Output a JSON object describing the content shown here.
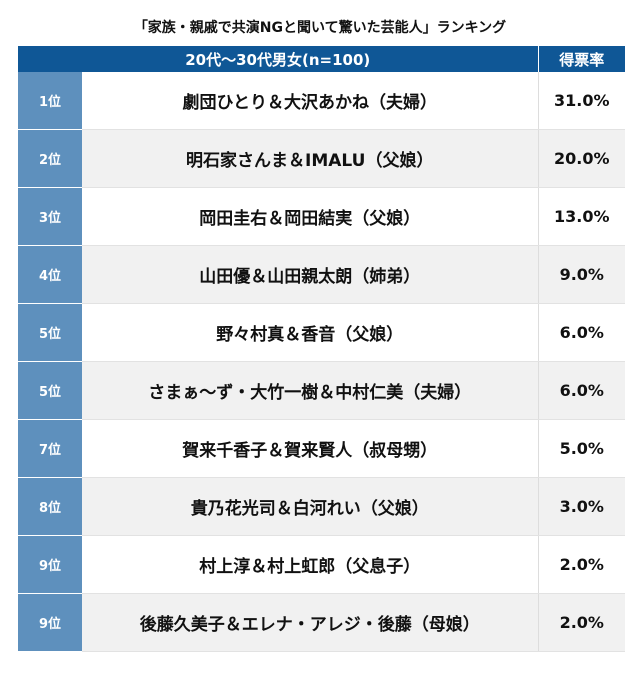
{
  "title": "「家族・親戚で共演NGと聞いて驚いた芸能人」ランキング",
  "header": {
    "group": "20代〜30代男女(n=100)",
    "rate": "得票率"
  },
  "colors": {
    "header": "#0f5796",
    "rank_column": "#5e90bd"
  },
  "rows": [
    {
      "rank": "1位",
      "name": "劇団ひとり＆大沢あかね（夫婦）",
      "rate": "31.0%"
    },
    {
      "rank": "2位",
      "name": "明石家さんま＆IMALU（父娘）",
      "rate": "20.0%"
    },
    {
      "rank": "3位",
      "name": "岡田圭右＆岡田結実（父娘）",
      "rate": "13.0%"
    },
    {
      "rank": "4位",
      "name": "山田優＆山田親太朗（姉弟）",
      "rate": "9.0%"
    },
    {
      "rank": "5位",
      "name": "野々村真＆香音（父娘）",
      "rate": "6.0%"
    },
    {
      "rank": "5位",
      "name": "さまぁ〜ず・大竹一樹＆中村仁美（夫婦）",
      "rate": "6.0%"
    },
    {
      "rank": "7位",
      "name": "賀来千香子＆賀来賢人（叔母甥）",
      "rate": "5.0%"
    },
    {
      "rank": "8位",
      "name": "貴乃花光司＆白河れい（父娘）",
      "rate": "3.0%"
    },
    {
      "rank": "9位",
      "name": "村上淳＆村上虹郎（父息子）",
      "rate": "2.0%"
    },
    {
      "rank": "9位",
      "name": "後藤久美子＆エレナ・アレジ・後藤（母娘）",
      "rate": "2.0%"
    }
  ]
}
